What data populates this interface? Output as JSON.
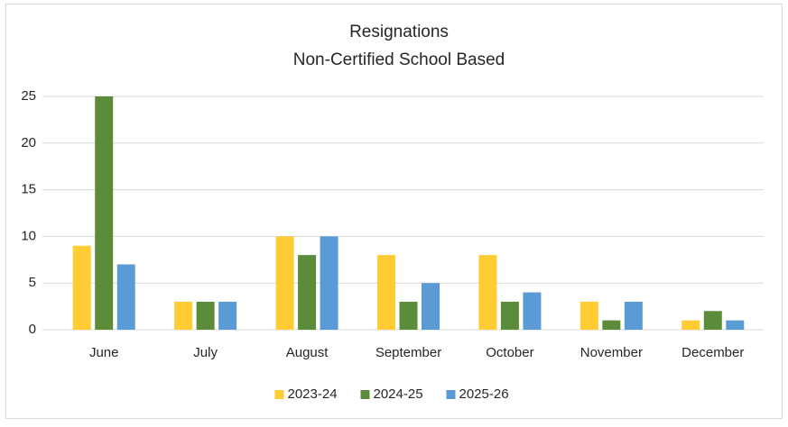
{
  "chart_data": {
    "type": "bar",
    "title": "Resignations",
    "subtitle": "Non-Certified School Based",
    "categories": [
      "June",
      "July",
      "August",
      "September",
      "October",
      "November",
      "December"
    ],
    "series": [
      {
        "name": "2023-24",
        "color": "#ffcd33",
        "values": [
          9,
          3,
          10,
          8,
          8,
          3,
          1
        ]
      },
      {
        "name": "2024-25",
        "color": "#5b8c3a",
        "values": [
          25,
          3,
          8,
          3,
          3,
          1,
          2
        ]
      },
      {
        "name": "2025-26",
        "color": "#5b9bd5",
        "values": [
          7,
          3,
          10,
          5,
          4,
          3,
          1
        ]
      }
    ],
    "ylim": [
      0,
      25
    ],
    "yticks": [
      0,
      5,
      10,
      15,
      20,
      25
    ],
    "grid": true,
    "legend": "bottom"
  }
}
